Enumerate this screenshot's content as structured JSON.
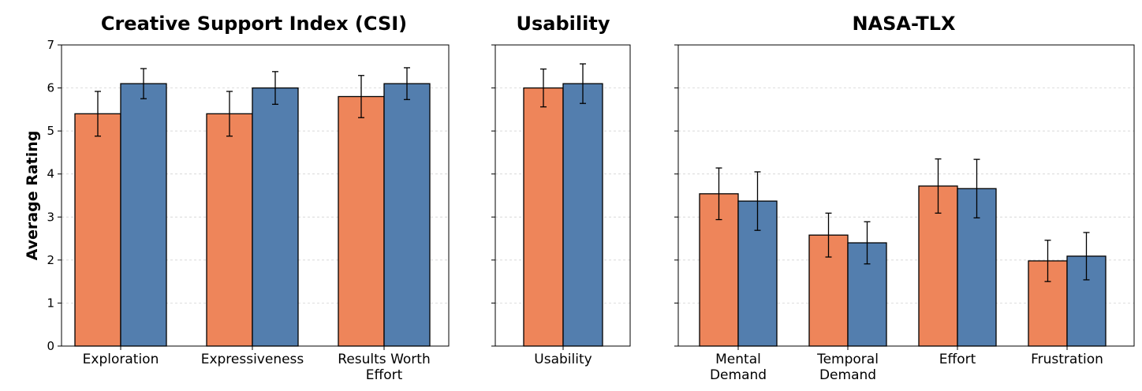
{
  "chart_data": [
    {
      "type": "bar",
      "title": "Creative Support Index (CSI)",
      "ylabel": "Average Rating",
      "ylim": [
        0,
        7
      ],
      "yticks": [
        "0",
        "1",
        "2",
        "3",
        "4",
        "5",
        "6",
        "7"
      ],
      "grid": true,
      "categories": [
        [
          "Exploration"
        ],
        [
          "Expressiveness"
        ],
        [
          "Results Worth",
          "Effort"
        ]
      ],
      "series": [
        {
          "color": "#EE855A",
          "values": [
            5.4,
            5.4,
            5.8
          ],
          "errors": [
            0.52,
            0.52,
            0.49
          ]
        },
        {
          "color": "#537EAE",
          "values": [
            6.1,
            6.0,
            6.1
          ],
          "errors": [
            0.35,
            0.38,
            0.37
          ]
        }
      ]
    },
    {
      "type": "bar",
      "title": "Usability",
      "ylim": [
        0,
        7
      ],
      "grid": true,
      "categories": [
        [
          "Usability"
        ]
      ],
      "series": [
        {
          "color": "#EE855A",
          "values": [
            6.0
          ],
          "errors": [
            0.44
          ]
        },
        {
          "color": "#537EAE",
          "values": [
            6.1
          ],
          "errors": [
            0.46
          ]
        }
      ]
    },
    {
      "type": "bar",
      "title": "NASA-TLX",
      "ylim": [
        0,
        7
      ],
      "grid": true,
      "categories": [
        [
          "Mental",
          "Demand"
        ],
        [
          "Temporal",
          "Demand"
        ],
        [
          "Effort"
        ],
        [
          "Frustration"
        ]
      ],
      "series": [
        {
          "color": "#EE855A",
          "values": [
            3.54,
            2.58,
            3.72,
            1.98
          ],
          "errors": [
            0.6,
            0.51,
            0.63,
            0.48
          ]
        },
        {
          "color": "#537EAE",
          "values": [
            3.37,
            2.4,
            3.66,
            2.09
          ],
          "errors": [
            0.68,
            0.49,
            0.68,
            0.55
          ]
        }
      ]
    }
  ]
}
